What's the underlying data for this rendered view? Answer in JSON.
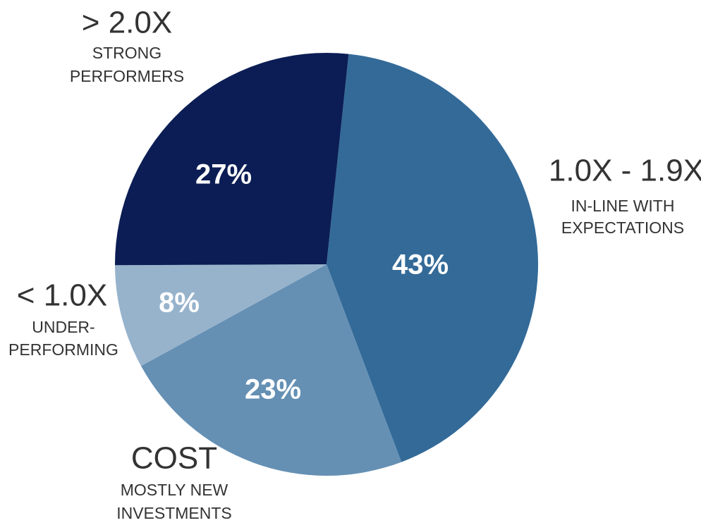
{
  "chart_data": {
    "type": "pie",
    "categories": [
      "1.0X - 1.9X",
      "COST",
      "< 1.0X",
      "> 2.0X"
    ],
    "descriptions": [
      [
        "IN-LINE WITH",
        "EXPECTATIONS"
      ],
      [
        "MOSTLY NEW",
        "INVESTMENTS"
      ],
      [
        "UNDER-",
        "PERFORMING"
      ],
      [
        "STRONG",
        "PERFORMERS"
      ]
    ],
    "values": [
      43,
      23,
      8,
      27
    ],
    "value_labels": [
      "43%",
      "23%",
      "8%",
      "27%"
    ],
    "colors": [
      "#336a98",
      "#6590b4",
      "#97b3cc",
      "#0b1d54"
    ]
  }
}
